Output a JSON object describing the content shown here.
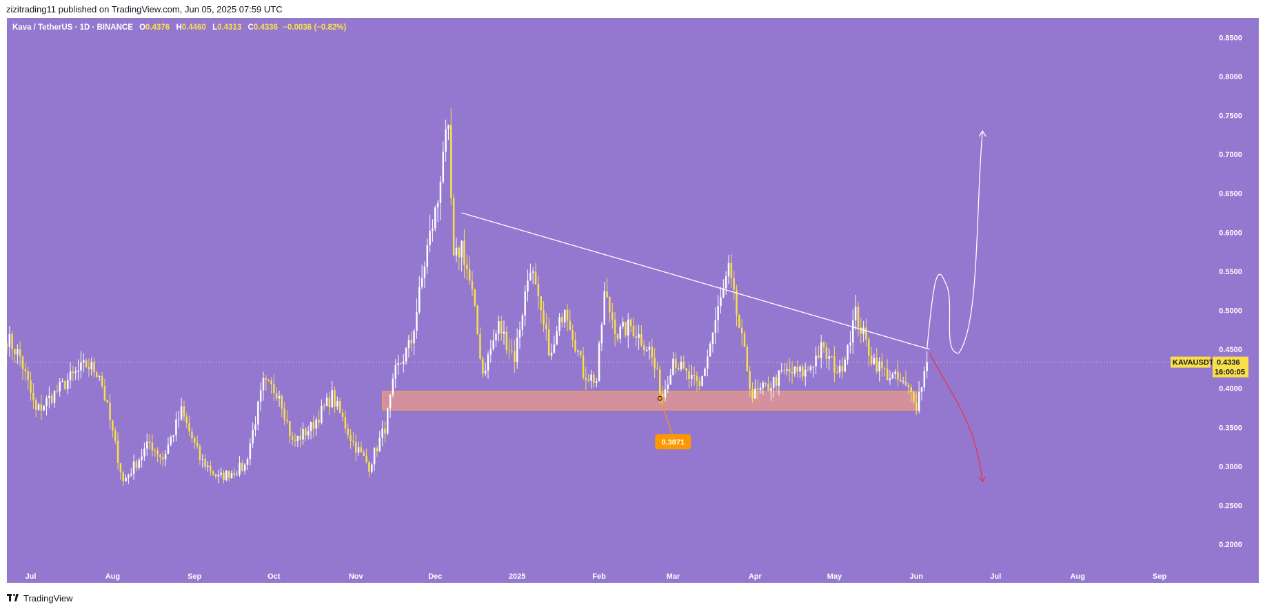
{
  "header": {
    "publisher": "zizitrading11 published on TradingView.com,",
    "date": "Jun 05, 2025 07:59 UTC"
  },
  "legend": {
    "symbol": "Kava / TetherUS · 1D · BINANCE",
    "open_key": "O",
    "open": "0.4376",
    "high_key": "H",
    "high": "0.4460",
    "low_key": "L",
    "low": "0.4313",
    "close_key": "C",
    "close": "0.4336",
    "change": "−0.0036 (−0.82%)"
  },
  "price_label": {
    "ticker": "KAVAUSDT",
    "price": "0.4336",
    "countdown": "16:00:05"
  },
  "annotation_label": "0.3871",
  "footer": {
    "brand": "TradingView"
  },
  "colors": {
    "background": "#9478cf",
    "candle_up": "#ffffff",
    "candle_down": "#f9e04a",
    "zone_fill": "#e89a8d",
    "zone_border": "#f5a54a",
    "annotation": "#ff9800",
    "arrow_down": "#e5364a",
    "arrow_up": "#ffffff",
    "price_tag": "#f9e04a"
  },
  "chart_data": {
    "type": "candlestick",
    "symbol": "Kava / TetherUS",
    "interval": "1D",
    "exchange": "BINANCE",
    "ylim": [
      0.17,
      0.875
    ],
    "y_ticks": [
      "0.8500",
      "0.8000",
      "0.7500",
      "0.7000",
      "0.6500",
      "0.6000",
      "0.5500",
      "0.5000",
      "0.4500",
      "0.4000",
      "0.3500",
      "0.3000",
      "0.2500",
      "0.2000"
    ],
    "x_ticks": [
      "Jul",
      "Aug",
      "Sep",
      "Oct",
      "Nov",
      "Dec",
      "2025",
      "Feb",
      "Mar",
      "Apr",
      "May",
      "Jun",
      "Jul",
      "Aug",
      "Sep"
    ],
    "x_range": [
      "2024-06-22",
      "2025-09-20"
    ],
    "price_anchors": [
      [
        "2024-06-22",
        0.465
      ],
      [
        "2024-06-27",
        0.44
      ],
      [
        "2024-07-03",
        0.37
      ],
      [
        "2024-07-15",
        0.41
      ],
      [
        "2024-07-22",
        0.43
      ],
      [
        "2024-07-27",
        0.42
      ],
      [
        "2024-08-05",
        0.28
      ],
      [
        "2024-08-15",
        0.33
      ],
      [
        "2024-08-20",
        0.31
      ],
      [
        "2024-08-27",
        0.37
      ],
      [
        "2024-09-03",
        0.31
      ],
      [
        "2024-09-10",
        0.285
      ],
      [
        "2024-09-20",
        0.3
      ],
      [
        "2024-09-27",
        0.405
      ],
      [
        "2024-10-03",
        0.395
      ],
      [
        "2024-10-08",
        0.33
      ],
      [
        "2024-10-15",
        0.35
      ],
      [
        "2024-10-23",
        0.39
      ],
      [
        "2024-10-31",
        0.33
      ],
      [
        "2024-11-06",
        0.3
      ],
      [
        "2024-11-12",
        0.35
      ],
      [
        "2024-11-16",
        0.42
      ],
      [
        "2024-11-22",
        0.46
      ],
      [
        "2024-11-28",
        0.58
      ],
      [
        "2024-12-02",
        0.64
      ],
      [
        "2024-12-04",
        0.71
      ],
      [
        "2024-12-06",
        0.72
      ],
      [
        "2024-12-08",
        0.56
      ],
      [
        "2024-12-11",
        0.585
      ],
      [
        "2024-12-15",
        0.52
      ],
      [
        "2024-12-19",
        0.42
      ],
      [
        "2024-12-25",
        0.48
      ],
      [
        "2024-12-31",
        0.44
      ],
      [
        "2025-01-06",
        0.56
      ],
      [
        "2025-01-10",
        0.49
      ],
      [
        "2025-01-14",
        0.44
      ],
      [
        "2025-01-19",
        0.51
      ],
      [
        "2025-01-26",
        0.42
      ],
      [
        "2025-01-31",
        0.41
      ],
      [
        "2025-02-03",
        0.52
      ],
      [
        "2025-02-08",
        0.47
      ],
      [
        "2025-02-13",
        0.48
      ],
      [
        "2025-02-20",
        0.45
      ],
      [
        "2025-02-25",
        0.39
      ],
      [
        "2025-03-01",
        0.44
      ],
      [
        "2025-03-05",
        0.42
      ],
      [
        "2025-03-11",
        0.4
      ],
      [
        "2025-03-18",
        0.5
      ],
      [
        "2025-03-22",
        0.55
      ],
      [
        "2025-03-27",
        0.46
      ],
      [
        "2025-03-31",
        0.39
      ],
      [
        "2025-04-05",
        0.4
      ],
      [
        "2025-04-12",
        0.42
      ],
      [
        "2025-04-20",
        0.42
      ],
      [
        "2025-04-26",
        0.45
      ],
      [
        "2025-05-03",
        0.42
      ],
      [
        "2025-05-09",
        0.495
      ],
      [
        "2025-05-15",
        0.44
      ],
      [
        "2025-05-20",
        0.42
      ],
      [
        "2025-05-25",
        0.41
      ],
      [
        "2025-05-31",
        0.39
      ],
      [
        "2025-06-01",
        0.38
      ],
      [
        "2025-06-05",
        0.4336
      ]
    ],
    "last_price": 0.4336,
    "support_zone": {
      "from": "2024-11-11",
      "to": "2025-06-01",
      "low": 0.372,
      "high": 0.396
    },
    "annotation_point": {
      "date": "2025-02-24",
      "price": 0.3871
    },
    "trendline": [
      [
        "2024-12-11",
        0.625
      ],
      [
        "2025-06-06",
        0.45
      ]
    ],
    "projection_up": [
      [
        "2025-06-05",
        0.45
      ],
      [
        "2025-06-12",
        0.535
      ],
      [
        "2025-06-17",
        0.445
      ],
      [
        "2025-06-26",
        0.73
      ]
    ],
    "projection_down": [
      [
        "2025-06-06",
        0.445
      ],
      [
        "2025-06-26",
        0.28
      ]
    ]
  }
}
